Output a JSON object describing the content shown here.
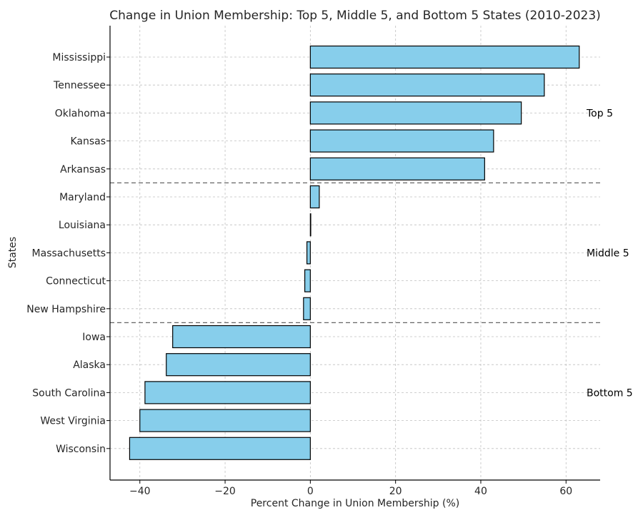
{
  "chart_data": {
    "type": "bar",
    "orientation": "horizontal",
    "title": "Change in Union Membership: Top 5, Middle 5, and Bottom 5 States (2010-2023)",
    "xlabel": "Percent Change in Union Membership (%)",
    "ylabel": "States",
    "xlim": [
      -47,
      68
    ],
    "xticks": [
      -40,
      -20,
      0,
      20,
      40,
      60
    ],
    "xtick_labels": [
      "−40",
      "−20",
      "0",
      "20",
      "40",
      "60"
    ],
    "grid": true,
    "bar_color": "#87ceeb",
    "bar_edge_color": "#000000",
    "categories": [
      "Mississippi",
      "Tennessee",
      "Oklahoma",
      "Kansas",
      "Arkansas",
      "Maryland",
      "Louisiana",
      "Massachusetts",
      "Connecticut",
      "New Hampshire",
      "Iowa",
      "Alaska",
      "South Carolina",
      "West Virginia",
      "Wisconsin"
    ],
    "values": [
      63.1,
      54.9,
      49.5,
      43.0,
      40.9,
      2.1,
      0.1,
      -0.8,
      -1.3,
      -1.6,
      -32.3,
      -33.8,
      -38.8,
      -40.0,
      -42.4
    ],
    "groups": [
      {
        "label": "Top 5",
        "start": 0,
        "end": 4
      },
      {
        "label": "Middle 5",
        "start": 5,
        "end": 9
      },
      {
        "label": "Bottom 5",
        "start": 10,
        "end": 14
      }
    ]
  }
}
